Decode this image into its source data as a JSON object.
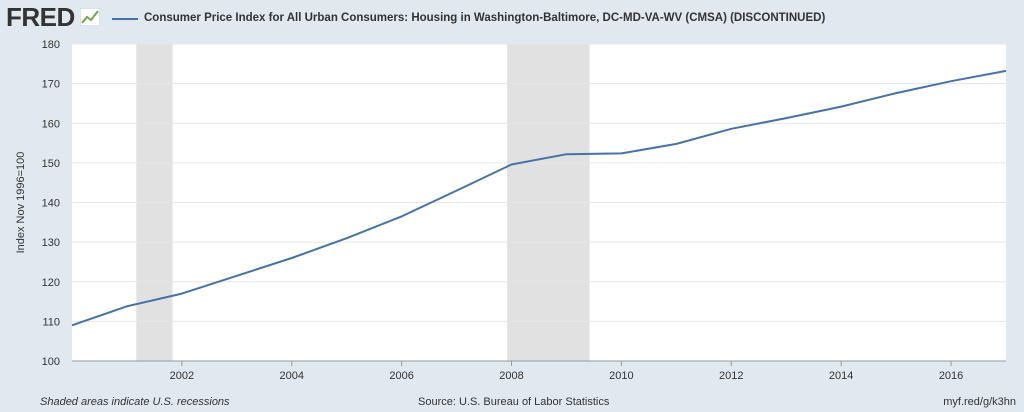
{
  "brand": {
    "logo_text": "FRED",
    "logo_icon": "line-chart-icon"
  },
  "chart_data": {
    "type": "line",
    "title": "Consumer Price Index for All Urban Consumers: Housing in Washington-Baltimore, DC-MD-VA-WV (CMSA) (DISCONTINUED)",
    "ylabel": "Index Nov 1996=100",
    "xlabel": "",
    "xlim": [
      2000,
      2017
    ],
    "ylim": [
      100,
      180
    ],
    "x_ticks": [
      2002,
      2004,
      2006,
      2008,
      2010,
      2012,
      2014,
      2016
    ],
    "y_ticks": [
      100,
      110,
      120,
      130,
      140,
      150,
      160,
      170,
      180
    ],
    "grid": true,
    "line_color": "#4572a7",
    "recession_color": "#e1e1e1",
    "recessions": [
      {
        "start": 2001.17,
        "end": 2001.83
      },
      {
        "start": 2007.92,
        "end": 2009.42
      }
    ],
    "series": [
      {
        "x": [
          2000,
          2001,
          2002,
          2003,
          2004,
          2005,
          2006,
          2007,
          2008,
          2009,
          2010,
          2011,
          2012,
          2013,
          2014,
          2015,
          2016,
          2017
        ],
        "values": [
          109.0,
          113.8,
          117.0,
          121.5,
          126.0,
          131.0,
          136.5,
          143.0,
          149.6,
          152.2,
          152.4,
          154.8,
          158.6,
          161.3,
          164.2,
          167.6,
          170.6,
          173.2
        ]
      }
    ]
  },
  "footer": {
    "note": "Shaded areas indicate U.S. recessions",
    "source": "Source: U.S. Bureau of Labor Statistics",
    "link": "myf.red/g/k3hn"
  }
}
